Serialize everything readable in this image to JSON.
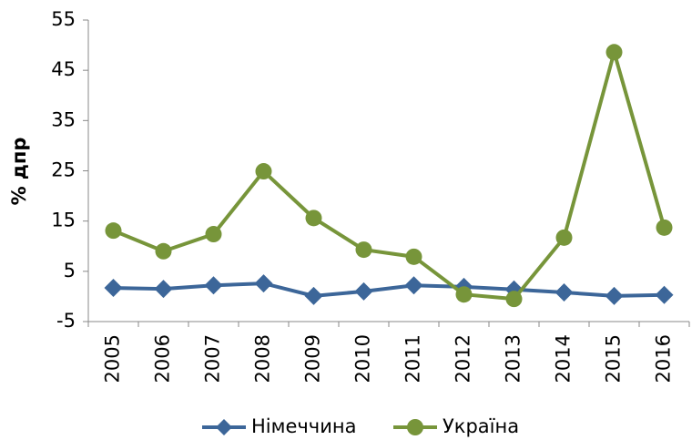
{
  "chart_data": {
    "type": "line",
    "y_label": "% дпр",
    "categories": [
      "2005",
      "2006",
      "2007",
      "2008",
      "2009",
      "2010",
      "2011",
      "2012",
      "2013",
      "2014",
      "2015",
      "2016"
    ],
    "series": [
      {
        "name": "Німеччина",
        "color": "#3c6699",
        "marker": "diamond",
        "values": [
          1.7,
          1.5,
          2.2,
          2.6,
          0.1,
          1.0,
          2.2,
          1.9,
          1.4,
          0.8,
          0.1,
          0.3
        ]
      },
      {
        "name": "Україна",
        "color": "#77953a",
        "marker": "circle",
        "values": [
          13.1,
          9.0,
          12.4,
          24.9,
          15.6,
          9.3,
          7.9,
          0.4,
          -0.5,
          11.7,
          48.6,
          13.7
        ]
      }
    ],
    "ylim": [
      -5,
      55
    ],
    "yticks": [
      -5,
      5,
      15,
      25,
      35,
      45,
      55
    ],
    "grid": false,
    "legend": "bottom"
  }
}
